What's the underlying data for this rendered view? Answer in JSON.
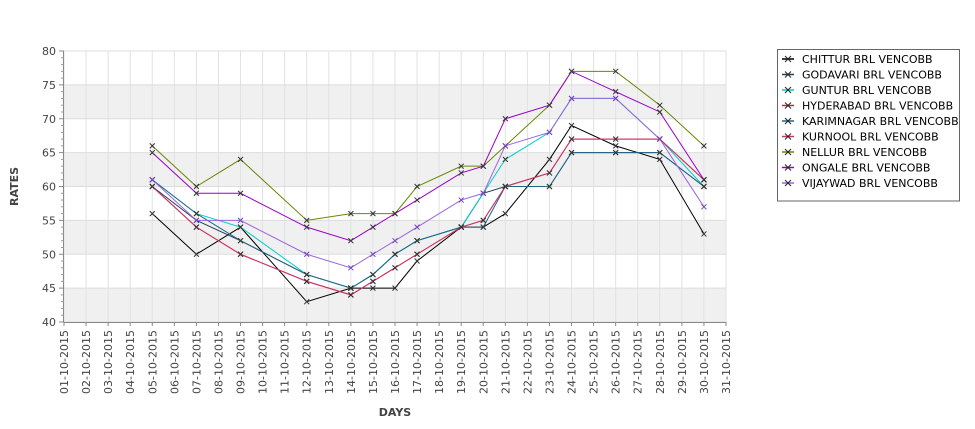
{
  "chart_data": {
    "type": "line",
    "title": "",
    "xlabel": "DAYS",
    "ylabel": "RATES",
    "ylim": [
      40,
      80
    ],
    "yticks": [
      40,
      45,
      50,
      55,
      60,
      65,
      70,
      75,
      80
    ],
    "grid": true,
    "legend_position": "right",
    "x": [
      "01-10-2015",
      "02-10-2015",
      "03-10-2015",
      "04-10-2015",
      "05-10-2015",
      "06-10-2015",
      "07-10-2015",
      "08-10-2015",
      "09-10-2015",
      "10-10-2015",
      "11-10-2015",
      "12-10-2015",
      "13-10-2015",
      "14-10-2015",
      "15-10-2015",
      "16-10-2015",
      "17-10-2015",
      "18-10-2015",
      "19-10-2015",
      "20-10-2015",
      "21-10-2015",
      "22-10-2015",
      "23-10-2015",
      "24-10-2015",
      "25-10-2015",
      "26-10-2015",
      "27-10-2015",
      "28-10-2015",
      "29-10-2015",
      "30-10-2015",
      "31-10-2015"
    ],
    "series": [
      {
        "name": "CHITTUR BRL VENCOBB",
        "color": "#000000",
        "points": [
          [
            "05-10-2015",
            56
          ],
          [
            "07-10-2015",
            50
          ],
          [
            "09-10-2015",
            54
          ],
          [
            "12-10-2015",
            43
          ],
          [
            "14-10-2015",
            45
          ],
          [
            "15-10-2015",
            45
          ],
          [
            "16-10-2015",
            45
          ],
          [
            "17-10-2015",
            49
          ],
          [
            "19-10-2015",
            54
          ],
          [
            "20-10-2015",
            54
          ],
          [
            "21-10-2015",
            56
          ],
          [
            "23-10-2015",
            64
          ],
          [
            "24-10-2015",
            69
          ],
          [
            "26-10-2015",
            66
          ],
          [
            "28-10-2015",
            64
          ],
          [
            "30-10-2015",
            53
          ]
        ]
      },
      {
        "name": "GODAVARI BRL VENCOBB",
        "color": "#1f3f5f",
        "points": [
          [
            "05-10-2015",
            60
          ],
          [
            "07-10-2015",
            55
          ],
          [
            "09-10-2015",
            52
          ],
          [
            "12-10-2015",
            47
          ],
          [
            "14-10-2015",
            45
          ],
          [
            "15-10-2015",
            47
          ],
          [
            "16-10-2015",
            50
          ],
          [
            "17-10-2015",
            52
          ],
          [
            "19-10-2015",
            54
          ],
          [
            "20-10-2015",
            59
          ],
          [
            "21-10-2015",
            60
          ],
          [
            "23-10-2015",
            60
          ],
          [
            "24-10-2015",
            65
          ],
          [
            "26-10-2015",
            65
          ],
          [
            "28-10-2015",
            65
          ],
          [
            "30-10-2015",
            60
          ]
        ]
      },
      {
        "name": "GUNTUR BRL VENCOBB",
        "color": "#00cccc",
        "points": [
          [
            "05-10-2015",
            61
          ],
          [
            "07-10-2015",
            56
          ],
          [
            "09-10-2015",
            54
          ],
          [
            "12-10-2015",
            47
          ],
          [
            "14-10-2015",
            45
          ],
          [
            "15-10-2015",
            47
          ],
          [
            "16-10-2015",
            50
          ],
          [
            "17-10-2015",
            52
          ],
          [
            "19-10-2015",
            54
          ],
          [
            "20-10-2015",
            59
          ],
          [
            "21-10-2015",
            64
          ],
          [
            "23-10-2015",
            68
          ],
          [
            "24-10-2015",
            73
          ],
          [
            "26-10-2015",
            73
          ],
          [
            "28-10-2015",
            67
          ],
          [
            "30-10-2015",
            60
          ]
        ]
      },
      {
        "name": "HYDERABAD BRL VENCOBB",
        "color": "#cc2244",
        "points": [
          [
            "05-10-2015",
            60
          ],
          [
            "07-10-2015",
            54
          ],
          [
            "09-10-2015",
            50
          ],
          [
            "12-10-2015",
            46
          ],
          [
            "14-10-2015",
            44
          ],
          [
            "15-10-2015",
            46
          ],
          [
            "16-10-2015",
            48
          ],
          [
            "17-10-2015",
            50
          ],
          [
            "19-10-2015",
            54
          ],
          [
            "20-10-2015",
            55
          ],
          [
            "21-10-2015",
            60
          ],
          [
            "23-10-2015",
            62
          ],
          [
            "24-10-2015",
            67
          ],
          [
            "26-10-2015",
            67
          ],
          [
            "28-10-2015",
            67
          ],
          [
            "30-10-2015",
            61
          ]
        ]
      },
      {
        "name": "KARIMNAGAR BRL VENCOBB",
        "color": "#226688",
        "points": [
          [
            "05-10-2015",
            61
          ],
          [
            "07-10-2015",
            56
          ],
          [
            "09-10-2015",
            52
          ],
          [
            "12-10-2015",
            47
          ],
          [
            "14-10-2015",
            45
          ],
          [
            "15-10-2015",
            47
          ],
          [
            "16-10-2015",
            50
          ],
          [
            "17-10-2015",
            52
          ],
          [
            "19-10-2015",
            54
          ],
          [
            "20-10-2015",
            54
          ],
          [
            "21-10-2015",
            60
          ],
          [
            "23-10-2015",
            60
          ],
          [
            "24-10-2015",
            65
          ],
          [
            "26-10-2015",
            65
          ],
          [
            "28-10-2015",
            65
          ],
          [
            "30-10-2015",
            60
          ]
        ]
      },
      {
        "name": "KURNOOL BRL VENCOBB",
        "color": "#cc3366",
        "points": [
          [
            "05-10-2015",
            60
          ],
          [
            "07-10-2015",
            54
          ],
          [
            "09-10-2015",
            50
          ],
          [
            "12-10-2015",
            46
          ],
          [
            "14-10-2015",
            44
          ],
          [
            "15-10-2015",
            46
          ],
          [
            "16-10-2015",
            48
          ],
          [
            "17-10-2015",
            50
          ],
          [
            "19-10-2015",
            54
          ],
          [
            "20-10-2015",
            55
          ],
          [
            "21-10-2015",
            60
          ],
          [
            "23-10-2015",
            62
          ],
          [
            "24-10-2015",
            67
          ],
          [
            "26-10-2015",
            67
          ],
          [
            "28-10-2015",
            67
          ],
          [
            "30-10-2015",
            61
          ]
        ]
      },
      {
        "name": "NELLUR BRL VENCOBB",
        "color": "#668800",
        "points": [
          [
            "05-10-2015",
            66
          ],
          [
            "07-10-2015",
            60
          ],
          [
            "09-10-2015",
            64
          ],
          [
            "12-10-2015",
            55
          ],
          [
            "14-10-2015",
            56
          ],
          [
            "15-10-2015",
            56
          ],
          [
            "16-10-2015",
            56
          ],
          [
            "17-10-2015",
            60
          ],
          [
            "19-10-2015",
            63
          ],
          [
            "20-10-2015",
            63
          ],
          [
            "21-10-2015",
            66
          ],
          [
            "23-10-2015",
            72
          ],
          [
            "24-10-2015",
            77
          ],
          [
            "26-10-2015",
            77
          ],
          [
            "28-10-2015",
            72
          ],
          [
            "30-10-2015",
            66
          ]
        ]
      },
      {
        "name": "ONGALE BRL VENCOBB",
        "color": "#9900cc",
        "points": [
          [
            "05-10-2015",
            65
          ],
          [
            "07-10-2015",
            59
          ],
          [
            "09-10-2015",
            59
          ],
          [
            "12-10-2015",
            54
          ],
          [
            "14-10-2015",
            52
          ],
          [
            "15-10-2015",
            54
          ],
          [
            "16-10-2015",
            56
          ],
          [
            "17-10-2015",
            58
          ],
          [
            "19-10-2015",
            62
          ],
          [
            "20-10-2015",
            63
          ],
          [
            "21-10-2015",
            70
          ],
          [
            "23-10-2015",
            72
          ],
          [
            "24-10-2015",
            77
          ],
          [
            "26-10-2015",
            74
          ],
          [
            "28-10-2015",
            71
          ],
          [
            "30-10-2015",
            61
          ]
        ]
      },
      {
        "name": "VIJAYWAD BRL VENCOBB",
        "color": "#9966dd",
        "points": [
          [
            "05-10-2015",
            61
          ],
          [
            "07-10-2015",
            55
          ],
          [
            "09-10-2015",
            55
          ],
          [
            "12-10-2015",
            50
          ],
          [
            "14-10-2015",
            48
          ],
          [
            "15-10-2015",
            50
          ],
          [
            "16-10-2015",
            52
          ],
          [
            "17-10-2015",
            54
          ],
          [
            "19-10-2015",
            58
          ],
          [
            "20-10-2015",
            59
          ],
          [
            "21-10-2015",
            66
          ],
          [
            "23-10-2015",
            68
          ],
          [
            "24-10-2015",
            73
          ],
          [
            "26-10-2015",
            73
          ],
          [
            "28-10-2015",
            67
          ],
          [
            "30-10-2015",
            57
          ]
        ]
      }
    ]
  }
}
